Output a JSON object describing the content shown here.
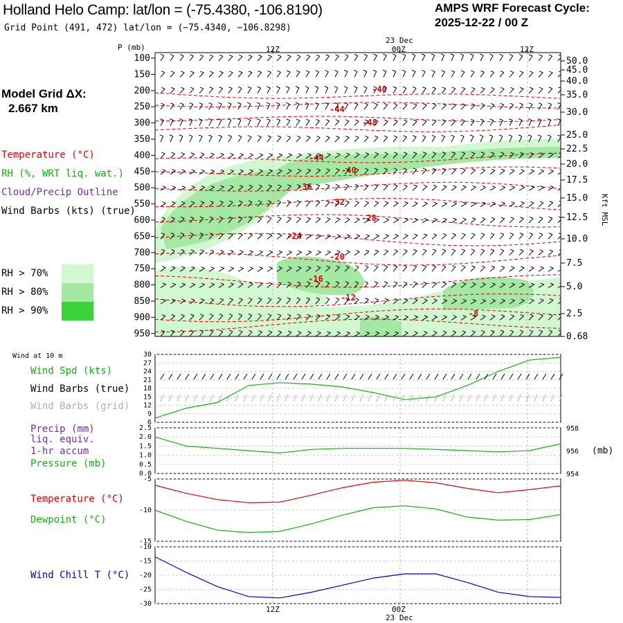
{
  "header": {
    "title": "Holland Helo Camp:  lat/lon = (-75.4380, -106.8190)",
    "grid_point": "Grid Point (491, 472) lat/lon = (−75.4340, −106.8298)",
    "forecast_title": "AMPS WRF Forecast Cycle:",
    "forecast_cycle": "2025-12-22 / 00  Z"
  },
  "time_axis": {
    "labels": [
      "12Z",
      "00Z",
      "12Z"
    ],
    "date_label": "23 Dec",
    "bottom_labels": [
      "12Z",
      "00Z"
    ],
    "bottom_date": "23 Dec"
  },
  "upper_panel": {
    "pressure_title": "P (mb)",
    "pressure_ticks": [
      "100",
      "150",
      "200",
      "250",
      "300",
      "350",
      "400",
      "450",
      "500",
      "550",
      "600",
      "650",
      "700",
      "750",
      "800",
      "850",
      "900",
      "950"
    ],
    "height_ticks": [
      "50.0",
      "45.0",
      "40.0",
      "35.0",
      "30.0",
      "25.0",
      "22.5",
      "20.0",
      "17.5",
      "15.0",
      "12.5",
      "10.0",
      "7.5",
      "5.0",
      "2.5",
      "0.68"
    ],
    "height_axis_label": "Kft MSL",
    "model_grid_label": "Model Grid ΔX:",
    "model_grid_value": "2.667 km",
    "legend": [
      {
        "text": "Temperature (°C)",
        "color": "#e00000"
      },
      {
        "text": "RH (%, WRT liq. wat.)",
        "color": "#10b010"
      },
      {
        "text": "Cloud/Precip Outline",
        "color": "#7030a0"
      },
      {
        "text": "Wind Barbs (kts) (true)",
        "color": "#000000"
      }
    ],
    "rh_legend": [
      {
        "text": "RH > 70%",
        "color": "#d2f8d2"
      },
      {
        "text": "RH > 80%",
        "color": "#a4e8a4"
      },
      {
        "text": "RH > 90%",
        "color": "#3cd23c"
      }
    ],
    "temp_labels": [
      "-40",
      "-44",
      "-48",
      "-44",
      "-40",
      "-36",
      "-32",
      "-28",
      "-24",
      "-20",
      "-16",
      "-12",
      "-8"
    ]
  },
  "wind_panel": {
    "caption": "Wind at 10 m",
    "legend": [
      {
        "text": "Wind Spd (kts)",
        "color": "#10b010"
      },
      {
        "text": "Wind Barbs (true)",
        "color": "#000000"
      },
      {
        "text": "Wind Barbs (grid)",
        "color": "#b0b0b0"
      }
    ],
    "y_ticks": [
      "30",
      "27",
      "24",
      "21",
      "18",
      "15",
      "12",
      "9",
      "6"
    ]
  },
  "precip_panel": {
    "legend": [
      {
        "text": "Precip (mm)",
        "color": "#7030a0"
      },
      {
        "text": "liq. equiv.",
        "color": "#7030a0"
      },
      {
        "text": "1-hr accum",
        "color": "#7030a0"
      },
      {
        "text": "Pressure (mb)",
        "color": "#10b010"
      }
    ],
    "y_ticks": [
      "2.5",
      "2.0",
      "1.5",
      "1.0",
      "0.5",
      "0.0"
    ],
    "right_ticks": [
      "958",
      "956",
      "954"
    ],
    "right_unit": "(mb)"
  },
  "temp_panel": {
    "legend": [
      {
        "text": "Temperature (°C)",
        "color": "#e00000"
      },
      {
        "text": "Dewpoint (°C)",
        "color": "#10b010"
      }
    ],
    "y_ticks": [
      "-5",
      "-10",
      "-15"
    ]
  },
  "chill_panel": {
    "legend": [
      {
        "text": "Wind Chill T (°C)",
        "color": "#0000c0"
      }
    ],
    "y_ticks": [
      "-10",
      "-15",
      "-20",
      "-25",
      "-30"
    ]
  },
  "chart_data": [
    {
      "type": "line",
      "title": "Wind Spd (kts) at 10 m",
      "x": [
        "00Z",
        "03Z",
        "06Z",
        "09Z",
        "12Z",
        "15Z",
        "18Z",
        "21Z",
        "00Z",
        "03Z",
        "06Z",
        "09Z",
        "12Z",
        "15Z"
      ],
      "ylim": [
        6,
        30
      ],
      "series": [
        {
          "name": "Wind Spd (kts)",
          "values": [
            7.5,
            11,
            13,
            19,
            20,
            19.5,
            18.5,
            16.5,
            14,
            15,
            19,
            24,
            28,
            29
          ]
        }
      ]
    },
    {
      "type": "line",
      "title": "Pressure (mb)",
      "x": [
        "00Z",
        "03Z",
        "06Z",
        "09Z",
        "12Z",
        "15Z",
        "18Z",
        "21Z",
        "00Z",
        "03Z",
        "06Z",
        "09Z",
        "12Z",
        "15Z"
      ],
      "ylim": [
        954,
        958
      ],
      "series": [
        {
          "name": "Pressure (mb)",
          "values": [
            957.2,
            956.4,
            956.2,
            956.0,
            955.8,
            956.1,
            956.2,
            956.2,
            956.2,
            956.1,
            956.0,
            955.9,
            956.0,
            956.6
          ]
        }
      ]
    },
    {
      "type": "line",
      "title": "Temperature / Dewpoint (°C)",
      "x": [
        "00Z",
        "03Z",
        "06Z",
        "09Z",
        "12Z",
        "15Z",
        "18Z",
        "21Z",
        "00Z",
        "03Z",
        "06Z",
        "09Z",
        "12Z",
        "15Z"
      ],
      "ylim": [
        -15,
        -5
      ],
      "series": [
        {
          "name": "Temperature (°C)",
          "values": [
            -6.0,
            -7.3,
            -8.3,
            -8.8,
            -8.7,
            -7.6,
            -6.4,
            -5.5,
            -5.2,
            -5.6,
            -6.5,
            -7.2,
            -6.7,
            -6.1
          ]
        },
        {
          "name": "Dewpoint (°C)",
          "values": [
            -10.0,
            -11.8,
            -13.2,
            -13.6,
            -13.4,
            -12.2,
            -10.8,
            -9.6,
            -9.3,
            -9.8,
            -11.1,
            -11.6,
            -11.5,
            -10.7
          ]
        }
      ]
    },
    {
      "type": "line",
      "title": "Wind Chill T (°C)",
      "x": [
        "00Z",
        "03Z",
        "06Z",
        "09Z",
        "12Z",
        "15Z",
        "18Z",
        "21Z",
        "00Z",
        "03Z",
        "06Z",
        "09Z",
        "12Z",
        "15Z"
      ],
      "ylim": [
        -30,
        -10
      ],
      "series": [
        {
          "name": "Wind Chill T (°C)",
          "values": [
            -13.5,
            -19,
            -24,
            -27.5,
            -28,
            -26,
            -23.5,
            -21,
            -19.5,
            -19.5,
            -22.5,
            -26,
            -27.5,
            -27.8
          ]
        }
      ]
    }
  ]
}
